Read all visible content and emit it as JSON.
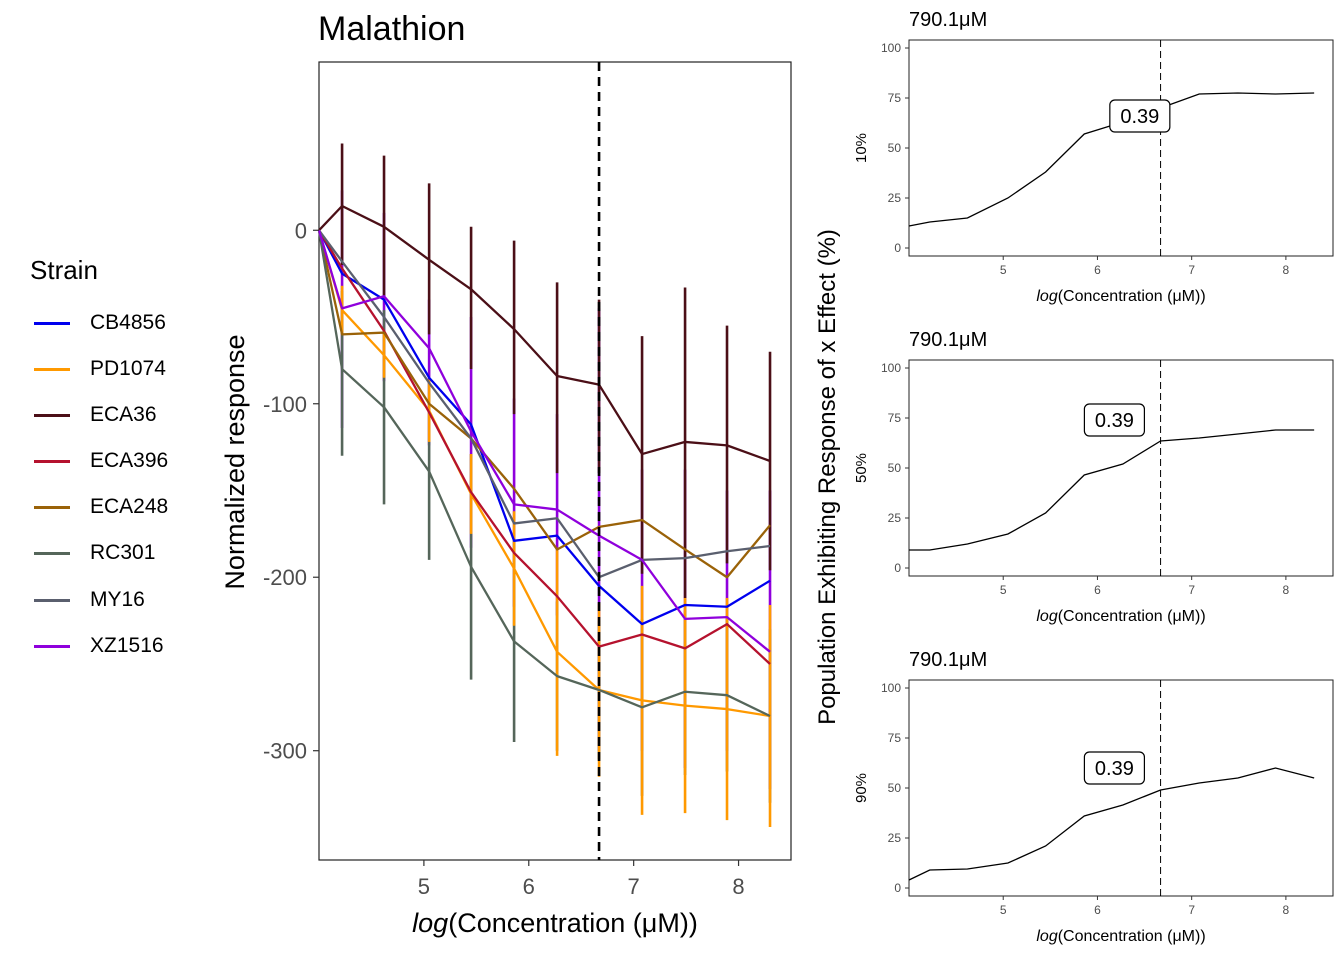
{
  "main": {
    "title": "Malathion",
    "xlabel_italic": "log",
    "xlabel_rest": "(Concentration (μM))",
    "ylabel": "Normalized response",
    "x_ticks": [
      "5",
      "6",
      "7",
      "8"
    ],
    "y_ticks": [
      "0",
      "-100",
      "-200",
      "-300"
    ]
  },
  "legend": {
    "title": "Strain",
    "items": [
      {
        "label": "CB4856",
        "color": "#0000ee"
      },
      {
        "label": "PD1074",
        "color": "#ff9900"
      },
      {
        "label": "ECA36",
        "color": "#4b0f17"
      },
      {
        "label": "ECA396",
        "color": "#b5122e"
      },
      {
        "label": "ECA248",
        "color": "#9a6208"
      },
      {
        "label": "RC301",
        "color": "#55665a"
      },
      {
        "label": "MY16",
        "color": "#5a5f6e"
      },
      {
        "label": "XZ1516",
        "color": "#8f00dc"
      }
    ]
  },
  "side": {
    "shared_ylabel": "Population Exhibiting Response of x Effect (%)",
    "panels": [
      {
        "title": "790.1μM",
        "ylabel": "10%",
        "annotation": "0.39"
      },
      {
        "title": "790.1μM",
        "ylabel": "50%",
        "annotation": "0.39"
      },
      {
        "title": "790.1μM",
        "ylabel": "90%",
        "annotation": "0.39"
      }
    ],
    "xlabel_italic": "log",
    "xlabel_rest": "(Concentration (μM))",
    "x_ticks": [
      "5",
      "6",
      "7",
      "8"
    ],
    "y_ticks": [
      "0",
      "25",
      "50",
      "75",
      "100"
    ]
  },
  "chart_data": [
    {
      "type": "line",
      "title": "Malathion",
      "xlabel": "log(Concentration (μM))",
      "ylabel": "Normalized response",
      "xlim": [
        4.0,
        8.5
      ],
      "ylim": [
        -363,
        97
      ],
      "vline_x": 6.67,
      "x": [
        4.0,
        4.22,
        4.62,
        5.05,
        5.45,
        5.86,
        6.27,
        6.67,
        7.08,
        7.49,
        7.89,
        8.3
      ],
      "series": [
        {
          "name": "CB4856",
          "color": "#0000ee",
          "values": [
            0,
            -25,
            -40,
            -85,
            -112,
            -179,
            -176,
            -205,
            -227,
            -216,
            -217,
            -202
          ]
        },
        {
          "name": "PD1074",
          "color": "#ff9900",
          "values": [
            0,
            -46,
            -72,
            -104,
            -152,
            -195,
            -243,
            -265,
            -271,
            -274,
            -276,
            -280
          ]
        },
        {
          "name": "ECA36",
          "color": "#4b0f17",
          "values": [
            0,
            14,
            2,
            -17,
            -34,
            -57,
            -84,
            -89,
            -129,
            -122,
            -124,
            -133
          ]
        },
        {
          "name": "ECA396",
          "color": "#b5122e",
          "values": [
            0,
            -22,
            -58,
            -105,
            -151,
            -186,
            -211,
            -240,
            -233,
            -241,
            -227,
            -250
          ]
        },
        {
          "name": "ECA248",
          "color": "#9a6208",
          "values": [
            0,
            -60,
            -59,
            -100,
            -120,
            -149,
            -184,
            -171,
            -167,
            -184,
            -200,
            -170
          ]
        },
        {
          "name": "RC301",
          "color": "#55665a",
          "values": [
            0,
            -80,
            -102,
            -139,
            -194,
            -237,
            -257,
            -265,
            -275,
            -266,
            -268,
            -280
          ]
        },
        {
          "name": "MY16",
          "color": "#5a5f6e",
          "values": [
            0,
            -18,
            -50,
            -88,
            -120,
            -169,
            -166,
            -200,
            -190,
            -189,
            -185,
            -182
          ]
        },
        {
          "name": "XZ1516",
          "color": "#8f00dc",
          "values": [
            0,
            -45,
            -38,
            -68,
            -116,
            -158,
            -161,
            -176,
            -190,
            -224,
            -223,
            -243
          ]
        }
      ],
      "error_bars": {
        "XZ1516": [
          [
            0,
            0
          ],
          [
            -114,
            23
          ],
          [
            -87,
            10
          ],
          [
            -124,
            -40
          ],
          [
            -183,
            -50
          ],
          [
            -217,
            -97
          ],
          [
            -222,
            -106
          ],
          [
            -300,
            -45
          ],
          [
            -300,
            -138
          ],
          [
            -310,
            -138
          ],
          [
            -300,
            -150
          ],
          [
            -322,
            -150
          ]
        ],
        "ECA36": [
          [
            0,
            0
          ],
          [
            -20,
            50
          ],
          [
            -38,
            43
          ],
          [
            -60,
            27
          ],
          [
            -80,
            2
          ],
          [
            -106,
            -6
          ],
          [
            -140,
            -30
          ],
          [
            -140,
            -40
          ],
          [
            -198,
            -61
          ],
          [
            -212,
            -33
          ],
          [
            -192,
            -55
          ],
          [
            -196,
            -70
          ]
        ],
        "RC301": [
          [
            0,
            0
          ],
          [
            -130,
            -35
          ],
          [
            -158,
            -46
          ],
          [
            -190,
            -88
          ],
          [
            -259,
            -129
          ],
          [
            -295,
            -179
          ],
          [
            -300,
            -214
          ],
          [
            -305,
            -225
          ],
          [
            -326,
            -224
          ],
          [
            -314,
            -219
          ],
          [
            -312,
            -224
          ],
          [
            -330,
            -230
          ]
        ],
        "PD1074": [
          [
            0,
            0
          ],
          [
            -60,
            -32
          ],
          [
            -85,
            -59
          ],
          [
            -122,
            -86
          ],
          [
            -175,
            -129
          ],
          [
            -228,
            -162
          ],
          [
            -303,
            -183
          ],
          [
            -315,
            -215
          ],
          [
            -337,
            -205
          ],
          [
            -336,
            -212
          ],
          [
            -340,
            -212
          ],
          [
            -344,
            -216
          ]
        ]
      }
    },
    {
      "type": "line",
      "title": "790.1μM",
      "ylabel": "10%",
      "xlabel": "log(Concentration (μM))",
      "xlim": [
        4.0,
        8.5
      ],
      "ylim": [
        -4,
        104
      ],
      "vline_x": 6.67,
      "annotation": {
        "text": "0.39",
        "x": 6.45,
        "y": 66
      },
      "x": [
        4.0,
        4.22,
        4.62,
        5.05,
        5.45,
        5.86,
        6.27,
        6.67,
        7.08,
        7.49,
        7.89,
        8.3
      ],
      "values": [
        11,
        13,
        15,
        25,
        38,
        57,
        63,
        70,
        77,
        77.5,
        77,
        77.5
      ]
    },
    {
      "type": "line",
      "title": "790.1μM",
      "ylabel": "50%",
      "xlabel": "log(Concentration (μM))",
      "xlim": [
        4.0,
        8.5
      ],
      "ylim": [
        -4,
        104
      ],
      "vline_x": 6.67,
      "annotation": {
        "text": "0.39",
        "x": 6.18,
        "y": 74
      },
      "x": [
        4.0,
        4.22,
        4.62,
        5.05,
        5.45,
        5.86,
        6.27,
        6.67,
        7.08,
        7.49,
        7.89,
        8.3
      ],
      "values": [
        9,
        9,
        12,
        17,
        27.5,
        46.5,
        52,
        63.5,
        65,
        67,
        69,
        69
      ]
    },
    {
      "type": "line",
      "title": "790.1μM",
      "ylabel": "90%",
      "xlabel": "log(Concentration (μM))",
      "xlim": [
        4.0,
        8.5
      ],
      "ylim": [
        -4,
        104
      ],
      "vline_x": 6.67,
      "annotation": {
        "text": "0.39",
        "x": 6.18,
        "y": 60
      },
      "x": [
        4.0,
        4.22,
        4.62,
        5.05,
        5.45,
        5.86,
        6.27,
        6.67,
        7.08,
        7.49,
        7.89,
        8.3
      ],
      "values": [
        4,
        9,
        9.5,
        12.5,
        21,
        36,
        41.5,
        49,
        52.5,
        55,
        60,
        55
      ]
    }
  ]
}
